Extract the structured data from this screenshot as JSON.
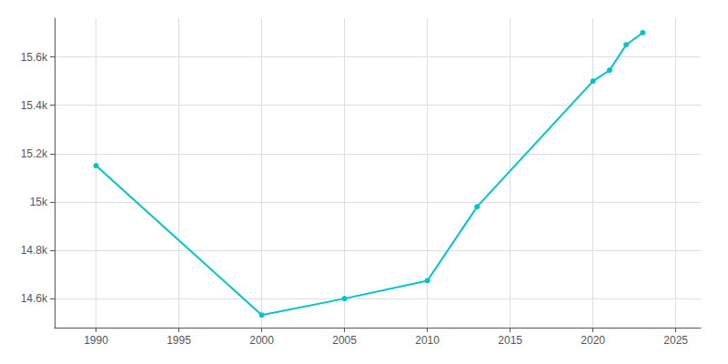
{
  "chart_data": {
    "type": "line",
    "x": [
      1990,
      2000,
      2005,
      2010,
      2013,
      2020,
      2021,
      2022,
      2023
    ],
    "values": [
      15150,
      14532,
      14600,
      14674,
      14980,
      15500,
      15545,
      15650,
      15700
    ],
    "color": "#00C5C8",
    "marker": "circle",
    "xlim": [
      1987.5,
      2026.5
    ],
    "xticks": [
      1990,
      1995,
      2000,
      2005,
      2010,
      2015,
      2020,
      2025
    ],
    "ylim": [
      14480,
      15760
    ],
    "yticks": [
      {
        "value": 14600,
        "label": "14.6k"
      },
      {
        "value": 14800,
        "label": "14.8k"
      },
      {
        "value": 15000,
        "label": "15k"
      },
      {
        "value": 15200,
        "label": "15.2k"
      },
      {
        "value": 15400,
        "label": "15.4k"
      },
      {
        "value": 15600,
        "label": "15.6k"
      }
    ],
    "grid": true
  }
}
